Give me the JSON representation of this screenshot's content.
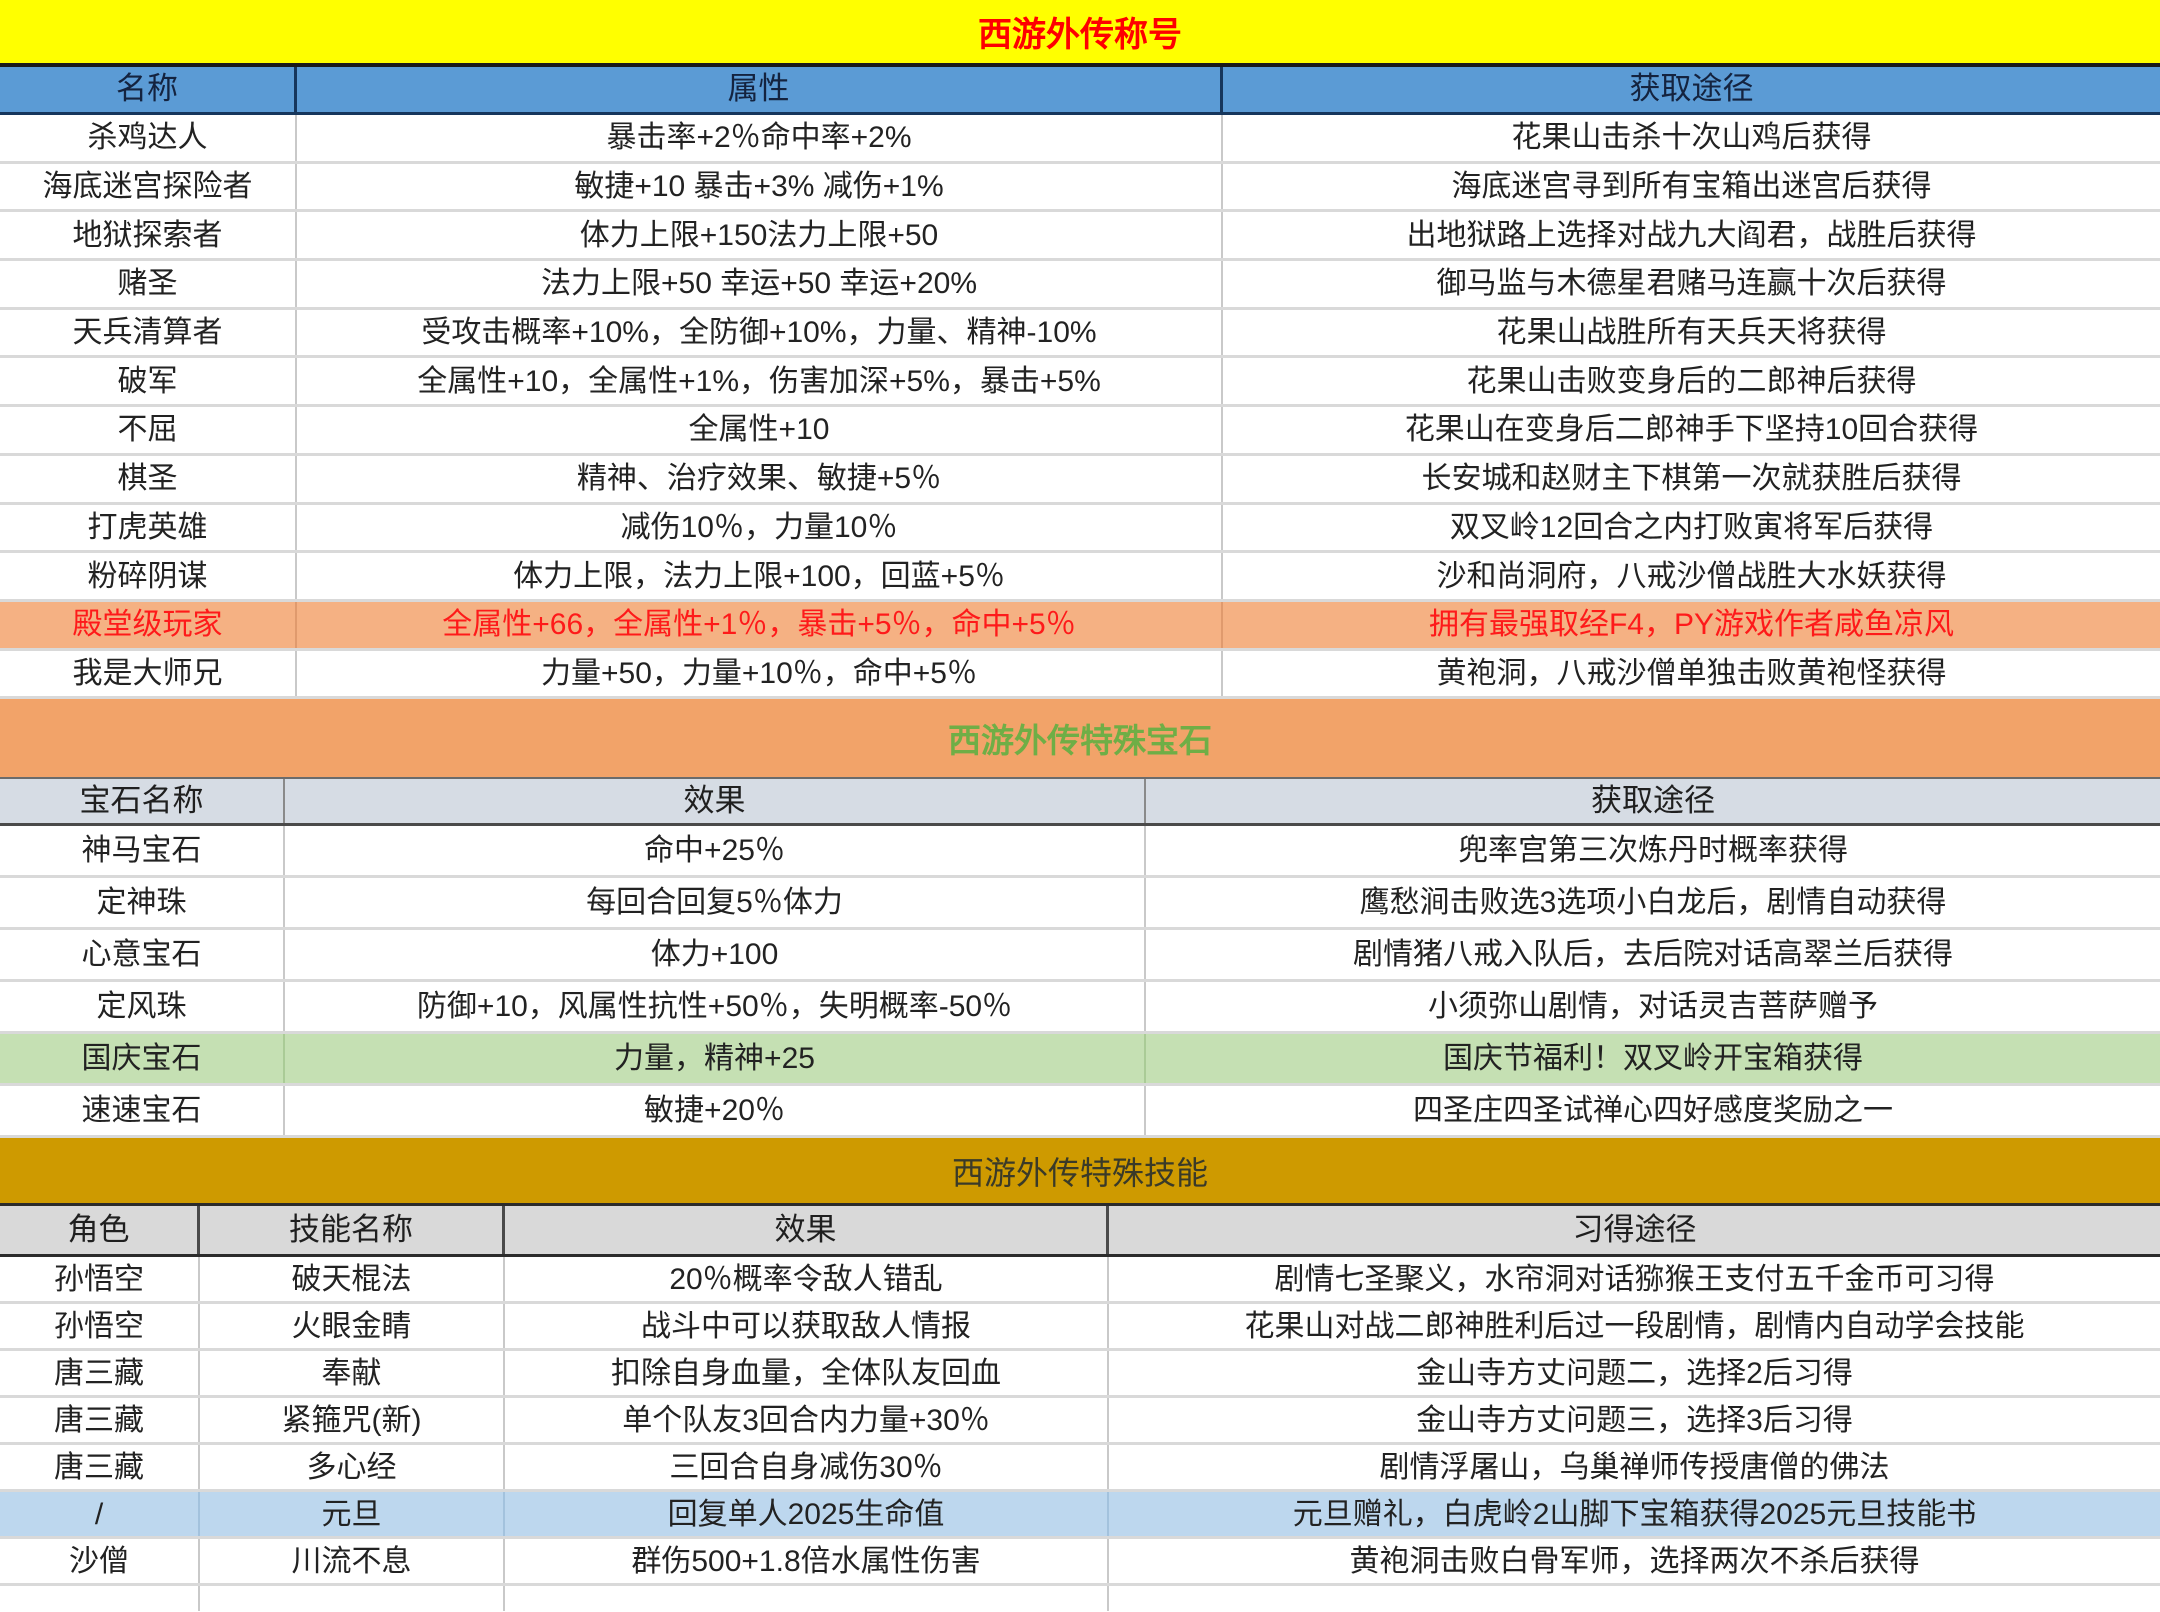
{
  "sections": {
    "titles_banner": "西游外传称号",
    "gems_banner": "西游外传特殊宝石",
    "skills_banner": "西游外传特殊技能"
  },
  "colors": {
    "banner_titles_bg": "#FFFF00",
    "banner_titles_text": "#FE0000",
    "table1_header_bg": "#5B9BD5",
    "banner_gems_bg": "#F2A369",
    "banner_gems_text": "#6FAE46",
    "highlight_salmon_row_bg": "#F5B183",
    "highlight_salmon_row_text": "#FE1A1A",
    "gems_header_bg": "#D6DCE4",
    "highlight_green_row_bg": "#C5E0B3",
    "banner_skills_bg": "#CE9A00",
    "skills_header_bg": "#D9D9D9",
    "highlight_blue_row_bg": "#BDD7EE"
  },
  "titles_table": {
    "headers": [
      "名称",
      "属性",
      "获取途径"
    ],
    "rows": [
      {
        "name": "杀鸡达人",
        "attr": "暴击率+2％命中率+2%",
        "source": "花果山击杀十次山鸡后获得"
      },
      {
        "name": "海底迷宫探险者",
        "attr": "敏捷+10 暴击+3% 减伤+1%",
        "source": "海底迷宫寻到所有宝箱出迷宫后获得"
      },
      {
        "name": "地狱探索者",
        "attr": "体力上限+150法力上限+50",
        "source": "出地狱路上选择对战九大阎君，战胜后获得"
      },
      {
        "name": "赌圣",
        "attr": "法力上限+50 幸运+50 幸运+20%",
        "source": "御马监与木德星君赌马连赢十次后获得"
      },
      {
        "name": "天兵清算者",
        "attr": "受攻击概率+10%，全防御+10%，力量、精神-10%",
        "source": "花果山战胜所有天兵天将获得"
      },
      {
        "name": "破军",
        "attr": "全属性+10，全属性+1%，伤害加深+5%，暴击+5%",
        "source": "花果山击败变身后的二郎神后获得"
      },
      {
        "name": "不屈",
        "attr": "全属性+10",
        "source": "花果山在变身后二郎神手下坚持10回合获得"
      },
      {
        "name": "棋圣",
        "attr": "精神、治疗效果、敏捷+5％",
        "source": "长安城和赵财主下棋第一次就获胜后获得"
      },
      {
        "name": "打虎英雄",
        "attr": "减伤10％，力量10％",
        "source": "双叉岭12回合之内打败寅将军后获得"
      },
      {
        "name": "粉碎阴谋",
        "attr": "体力上限，法力上限+100，回蓝+5％",
        "source": "沙和尚洞府，八戒沙僧战胜大水妖获得"
      },
      {
        "name": "殿堂级玩家",
        "attr": "全属性+66，全属性+1％，暴击+5％，命中+5％",
        "source": "拥有最强取经F4，PY游戏作者咸鱼凉风"
      },
      {
        "name": "我是大师兄",
        "attr": "力量+50，力量+10％，命中+5％",
        "source": "黄袍洞，八戒沙僧单独击败黄袍怪获得"
      }
    ]
  },
  "gems_table": {
    "headers": [
      "宝石名称",
      "效果",
      "获取途径"
    ],
    "rows": [
      {
        "name": "神马宝石",
        "effect": "命中+25％",
        "source": "兜率宫第三次炼丹时概率获得"
      },
      {
        "name": "定神珠",
        "effect": "每回合回复5％体力",
        "source": "鹰愁涧击败选3选项小白龙后，剧情自动获得"
      },
      {
        "name": "心意宝石",
        "effect": "体力+100",
        "source": "剧情猪八戒入队后，去后院对话高翠兰后获得"
      },
      {
        "name": "定风珠",
        "effect": "防御+10，风属性抗性+50％，失明概率-50％",
        "source": "小须弥山剧情，对话灵吉菩萨赠予"
      },
      {
        "name": "国庆宝石",
        "effect": "力量，精神+25",
        "source": "国庆节福利！双叉岭开宝箱获得"
      },
      {
        "name": "速速宝石",
        "effect": "敏捷+20％",
        "source": "四圣庄四圣试禅心四好感度奖励之一"
      }
    ]
  },
  "skills_table": {
    "headers": [
      "角色",
      "技能名称",
      "效果",
      "习得途径"
    ],
    "rows": [
      {
        "role": "孙悟空",
        "skill": "破天棍法",
        "effect": "20％概率令敌人错乱",
        "source": "剧情七圣聚义，水帘洞对话猕猴王支付五千金币可习得"
      },
      {
        "role": "孙悟空",
        "skill": "火眼金睛",
        "effect": "战斗中可以获取敌人情报",
        "source": "花果山对战二郎神胜利后过一段剧情，剧情内自动学会技能"
      },
      {
        "role": "唐三藏",
        "skill": "奉献",
        "effect": "扣除自身血量，全体队友回血",
        "source": "金山寺方丈问题二，选择2后习得"
      },
      {
        "role": "唐三藏",
        "skill": "紧箍咒(新)",
        "effect": "单个队友3回合内力量+30％",
        "source": "金山寺方丈问题三，选择3后习得"
      },
      {
        "role": "唐三藏",
        "skill": "多心经",
        "effect": "三回合自身减伤30％",
        "source": "剧情浮屠山，乌巢禅师传授唐僧的佛法"
      },
      {
        "role": "/",
        "skill": "元旦",
        "effect": "回复单人2025生命值",
        "source": "元旦赠礼，白虎岭2山脚下宝箱获得2025元旦技能书"
      },
      {
        "role": "沙僧",
        "skill": "川流不息",
        "effect": "群伤500+1.8倍水属性伤害",
        "source": "黄袍洞击败白骨军师，选择两次不杀后获得"
      }
    ]
  }
}
